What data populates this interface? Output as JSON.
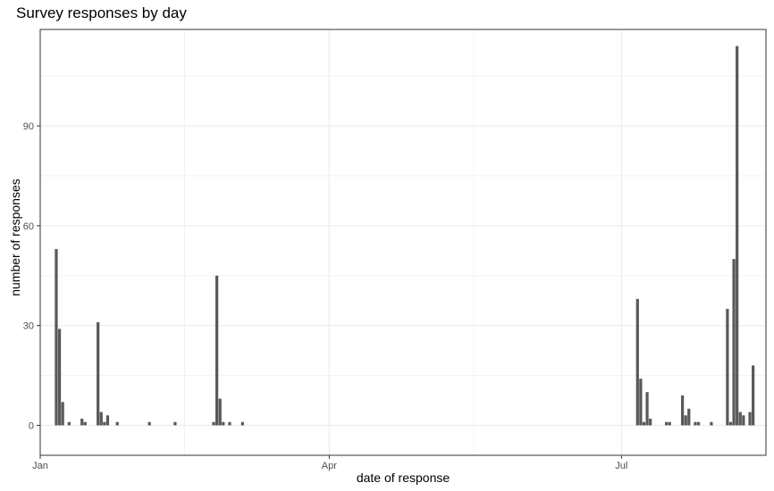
{
  "chart_data": {
    "type": "bar",
    "title": "Survey responses by day",
    "xlabel": "date of response",
    "ylabel": "number of responses",
    "x_axis": {
      "type": "date",
      "range": [
        "2019-01-01",
        "2019-08-15"
      ],
      "ticks": [
        {
          "date": "2019-01-01",
          "label": "Jan"
        },
        {
          "date": "2019-04-01",
          "label": "Apr"
        },
        {
          "date": "2019-07-01",
          "label": "Jul"
        }
      ],
      "minor_gridlines": [
        "2019-02-15",
        "2019-05-16",
        "2019-08-16"
      ]
    },
    "y_axis": {
      "range": [
        -9,
        119
      ],
      "ticks": [
        0,
        30,
        60,
        90
      ],
      "minor_gridlines": [
        15,
        45,
        75,
        105
      ]
    },
    "grid": true,
    "bar_color": "#595959",
    "panel_border_color": "#333333",
    "grid_color": "#ebebeb",
    "series": [
      {
        "points": [
          {
            "date": "2019-01-06",
            "value": 53
          },
          {
            "date": "2019-01-07",
            "value": 29
          },
          {
            "date": "2019-01-08",
            "value": 7
          },
          {
            "date": "2019-01-10",
            "value": 1
          },
          {
            "date": "2019-01-14",
            "value": 2
          },
          {
            "date": "2019-01-15",
            "value": 1
          },
          {
            "date": "2019-01-19",
            "value": 31
          },
          {
            "date": "2019-01-20",
            "value": 4
          },
          {
            "date": "2019-01-21",
            "value": 1
          },
          {
            "date": "2019-01-22",
            "value": 3
          },
          {
            "date": "2019-01-25",
            "value": 1
          },
          {
            "date": "2019-02-04",
            "value": 1
          },
          {
            "date": "2019-02-12",
            "value": 1
          },
          {
            "date": "2019-02-24",
            "value": 1
          },
          {
            "date": "2019-02-25",
            "value": 45
          },
          {
            "date": "2019-02-26",
            "value": 8
          },
          {
            "date": "2019-02-27",
            "value": 1
          },
          {
            "date": "2019-03-01",
            "value": 1
          },
          {
            "date": "2019-03-05",
            "value": 1
          },
          {
            "date": "2019-07-06",
            "value": 38
          },
          {
            "date": "2019-07-07",
            "value": 14
          },
          {
            "date": "2019-07-08",
            "value": 1
          },
          {
            "date": "2019-07-09",
            "value": 10
          },
          {
            "date": "2019-07-10",
            "value": 2
          },
          {
            "date": "2019-07-15",
            "value": 1
          },
          {
            "date": "2019-07-16",
            "value": 1
          },
          {
            "date": "2019-07-20",
            "value": 9
          },
          {
            "date": "2019-07-21",
            "value": 3
          },
          {
            "date": "2019-07-22",
            "value": 5
          },
          {
            "date": "2019-07-24",
            "value": 1
          },
          {
            "date": "2019-07-25",
            "value": 1
          },
          {
            "date": "2019-07-29",
            "value": 1
          },
          {
            "date": "2019-08-03",
            "value": 35
          },
          {
            "date": "2019-08-04",
            "value": 1
          },
          {
            "date": "2019-08-05",
            "value": 50
          },
          {
            "date": "2019-08-06",
            "value": 114
          },
          {
            "date": "2019-08-07",
            "value": 4
          },
          {
            "date": "2019-08-08",
            "value": 3
          },
          {
            "date": "2019-08-10",
            "value": 4
          },
          {
            "date": "2019-08-11",
            "value": 18
          }
        ]
      }
    ]
  }
}
